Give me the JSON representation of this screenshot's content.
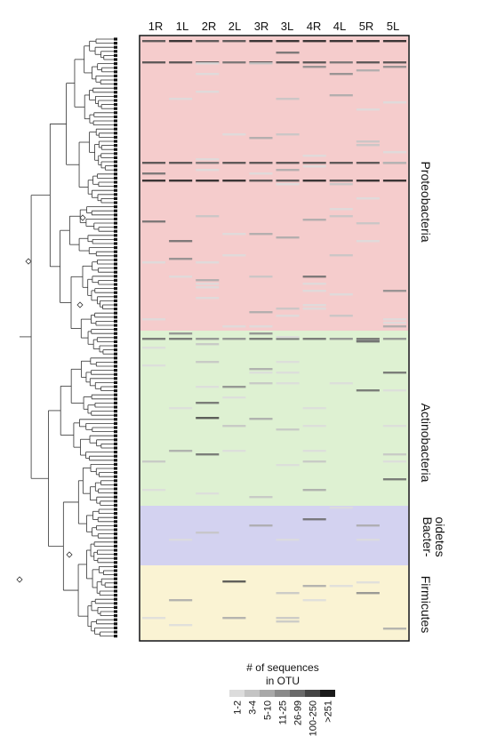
{
  "columns": [
    "1R",
    "1L",
    "2R",
    "2L",
    "3R",
    "3L",
    "4R",
    "4L",
    "5R",
    "5L"
  ],
  "groups": [
    {
      "id": "proteobacteria",
      "lines": [
        "Proteobacteria"
      ],
      "color": "#f5cccc"
    },
    {
      "id": "actinobacteria",
      "lines": [
        "Actinobacteria"
      ],
      "color": "#def1d2"
    },
    {
      "id": "bacteroidetes",
      "lines": [
        "Bacter-",
        "oidetes"
      ],
      "color": "#d3d2f0"
    },
    {
      "id": "firmicutes",
      "lines": [
        "Firmicutes"
      ],
      "color": "#faf3d3"
    }
  ],
  "legend": {
    "title_line1": "# of sequences",
    "title_line2": "in OTU",
    "bins": [
      "1-2",
      "3-4",
      "5-10",
      "11-25",
      "26-99",
      "100-250",
      ">251"
    ],
    "shades": [
      "#dcdcdc",
      "#c4c4c4",
      "#a8a8a8",
      "#8a8a8a",
      "#6a6a6a",
      "#454545",
      "#1a1a1a"
    ]
  }
}
